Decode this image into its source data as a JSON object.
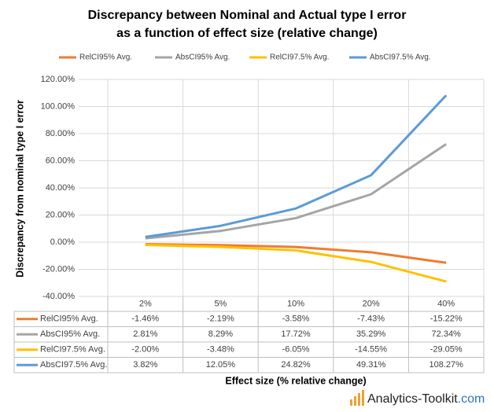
{
  "chart_data": {
    "type": "line",
    "title": "Discrepancy between Nominal and Actual type I error",
    "subtitle": "as a function of effect size (relative change)",
    "x_label": "Effect size (% relative change)",
    "y_label": "Discrepancy from nominal type I error",
    "categories": [
      "2%",
      "5%",
      "10%",
      "20%",
      "40%"
    ],
    "series": [
      {
        "name": "RelCI95% Avg.",
        "color": "#ed7d31",
        "values": [
          -1.46,
          -2.19,
          -3.58,
          -7.43,
          -15.22
        ],
        "value_labels": [
          "-1.46%",
          "-2.19%",
          "-3.58%",
          "-7.43%",
          "-15.22%"
        ]
      },
      {
        "name": "AbsCI95% Avg.",
        "color": "#a5a5a5",
        "values": [
          2.81,
          8.29,
          17.72,
          35.29,
          72.34
        ],
        "value_labels": [
          "2.81%",
          "8.29%",
          "17.72%",
          "35.29%",
          "72.34%"
        ]
      },
      {
        "name": "RelCI97.5% Avg.",
        "color": "#ffc000",
        "values": [
          -2.0,
          -3.48,
          -6.05,
          -14.55,
          -29.05
        ],
        "value_labels": [
          "-2.00%",
          "-3.48%",
          "-6.05%",
          "-14.55%",
          "-29.05%"
        ]
      },
      {
        "name": "AbsCI97.5% Avg.",
        "color": "#5b9bd5",
        "values": [
          3.82,
          12.05,
          24.82,
          49.31,
          108.27
        ],
        "value_labels": [
          "3.82%",
          "12.05%",
          "24.82%",
          "49.31%",
          "108.27%"
        ]
      }
    ],
    "ylim": [
      -40,
      120
    ],
    "yticks": [
      {
        "value": -40,
        "label": "-40.00%"
      },
      {
        "value": -20,
        "label": "-20.00%"
      },
      {
        "value": 0,
        "label": "0.00%"
      },
      {
        "value": 20,
        "label": "20.00%"
      },
      {
        "value": 40,
        "label": "40.00%"
      },
      {
        "value": 60,
        "label": "60.00%"
      },
      {
        "value": 80,
        "label": "80.00%"
      },
      {
        "value": 100,
        "label": "100.00%"
      },
      {
        "value": 120,
        "label": "120.00%"
      }
    ],
    "grid": true,
    "legend": "top"
  },
  "logo": {
    "name": "Analytics-Toolkit",
    "domain": ".com"
  }
}
